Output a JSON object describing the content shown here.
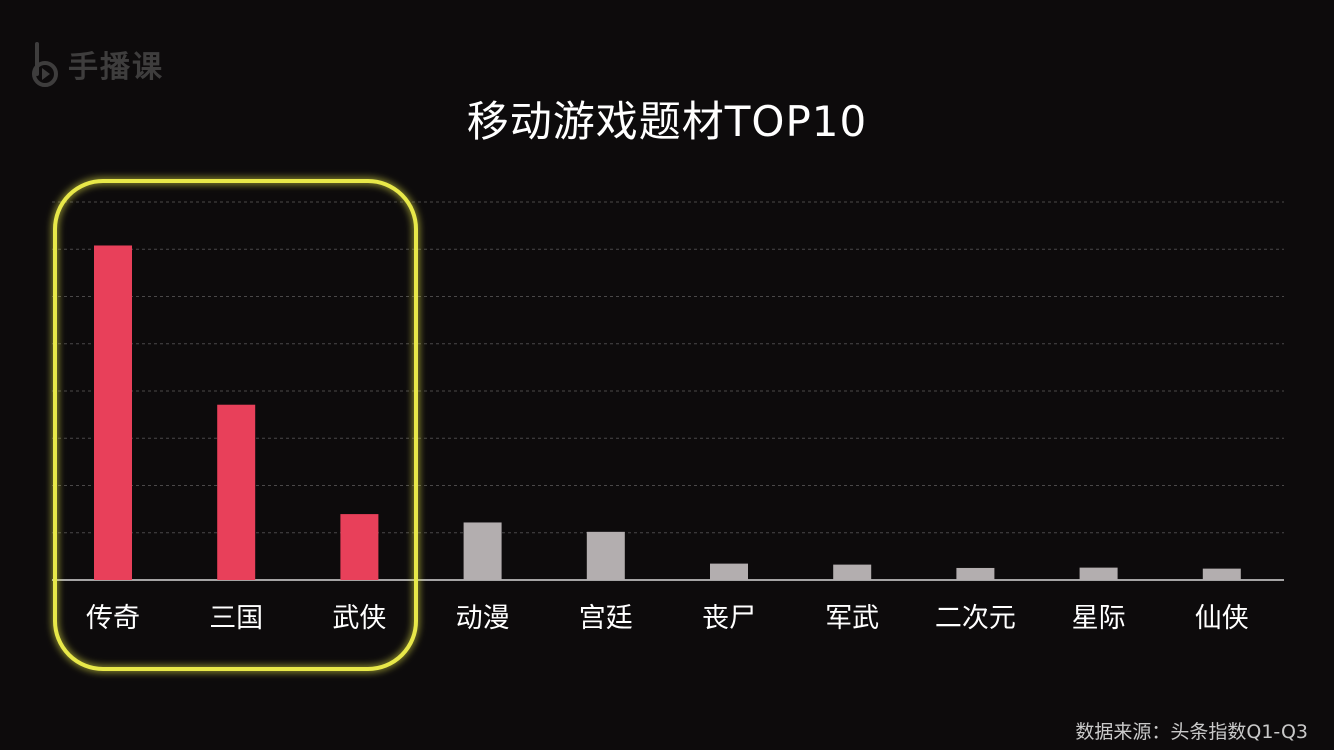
{
  "logo": {
    "text": "手播课",
    "icon": "play-note-icon"
  },
  "source_note": "数据来源：头条指数Q1-Q3",
  "colors": {
    "background": "#0d0b0c",
    "highlight_bar": "#e8405a",
    "normal_bar": "#b3aeaf",
    "highlight_box": "#e8e84a",
    "gridline": "#4a4849",
    "label": "#ffffff"
  },
  "chart_data": {
    "type": "bar",
    "title": "移动游戏题材TOP10",
    "xlabel": "",
    "ylabel": "",
    "grid": true,
    "categories": [
      "传奇",
      "三国",
      "武侠",
      "动漫",
      "宫廷",
      "丧尸",
      "军武",
      "二次元",
      "星际",
      "仙侠"
    ],
    "values": [
      100,
      52.4,
      19.7,
      17.2,
      14.4,
      4.9,
      4.6,
      3.6,
      3.7,
      3.4
    ],
    "ylim": [
      0,
      113
    ],
    "highlighted": [
      "传奇",
      "三国",
      "武侠"
    ]
  }
}
